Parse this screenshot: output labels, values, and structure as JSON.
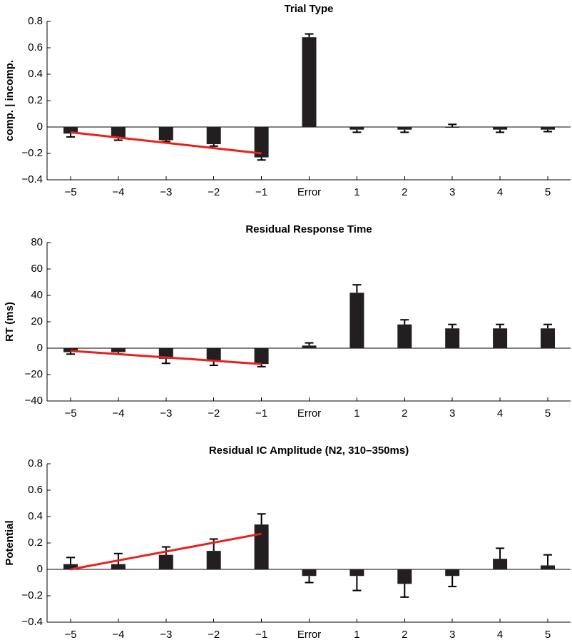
{
  "chart_data": [
    {
      "type": "bar",
      "title": "Trial Type",
      "ylabel": "comp. | incomp.",
      "xlabel": "",
      "categories": [
        "−5",
        "−4",
        "−3",
        "−2",
        "−1",
        "Error",
        "1",
        "2",
        "3",
        "4",
        "5"
      ],
      "values": [
        -0.05,
        -0.08,
        -0.1,
        -0.13,
        -0.23,
        0.68,
        -0.02,
        -0.02,
        0.0,
        -0.02,
        -0.02
      ],
      "errors": [
        0.025,
        0.02,
        0.01,
        0.015,
        0.02,
        0.025,
        0.02,
        0.02,
        0.02,
        0.02,
        0.015
      ],
      "ylim": [
        -0.4,
        0.8
      ],
      "yticks": [
        -0.4,
        -0.2,
        0,
        0.2,
        0.4,
        0.6,
        0.8
      ],
      "ytick_labels": [
        "−0.4",
        "−0.2",
        "0",
        "0.2",
        "0.4",
        "0.6",
        "0.8"
      ],
      "trend_line": {
        "from": {
          "category_index": 0,
          "value": -0.04
        },
        "to": {
          "category_index": 4,
          "value": -0.2
        }
      },
      "colors": {
        "bar": "#231f20",
        "trend": "#e8211f"
      }
    },
    {
      "type": "bar",
      "title": "Residual Response Time",
      "ylabel": "RT (ms)",
      "xlabel": "",
      "categories": [
        "−5",
        "−4",
        "−3",
        "−2",
        "−1",
        "Error",
        "1",
        "2",
        "3",
        "4",
        "5"
      ],
      "values": [
        -3,
        -3,
        -8,
        -10,
        -12,
        2,
        42,
        18,
        15,
        15,
        15
      ],
      "errors": [
        1.5,
        1.5,
        3.5,
        3,
        2,
        2,
        6,
        3.5,
        3,
        3,
        3
      ],
      "ylim": [
        -40,
        80
      ],
      "yticks": [
        -40,
        -20,
        0,
        20,
        40,
        60,
        80
      ],
      "ytick_labels": [
        "−40",
        "−20",
        "0",
        "20",
        "40",
        "60",
        "80"
      ],
      "trend_line": {
        "from": {
          "category_index": 0,
          "value": -2
        },
        "to": {
          "category_index": 4,
          "value": -12
        }
      },
      "colors": {
        "bar": "#231f20",
        "trend": "#e8211f"
      }
    },
    {
      "type": "bar",
      "title": "Residual IC Amplitude (N2, 310–350ms)",
      "ylabel": "Potential",
      "xlabel": "",
      "categories": [
        "−5",
        "−4",
        "−3",
        "−2",
        "−1",
        "Error",
        "1",
        "2",
        "3",
        "4",
        "5"
      ],
      "values": [
        0.04,
        0.04,
        0.11,
        0.14,
        0.34,
        -0.05,
        -0.05,
        -0.11,
        -0.05,
        0.08,
        0.03
      ],
      "errors": [
        0.05,
        0.08,
        0.06,
        0.09,
        0.08,
        0.05,
        0.11,
        0.1,
        0.08,
        0.08,
        0.08
      ],
      "ylim": [
        -0.4,
        0.8
      ],
      "yticks": [
        -0.4,
        -0.2,
        0,
        0.2,
        0.4,
        0.6,
        0.8
      ],
      "ytick_labels": [
        "−0.4",
        "−0.2",
        "0",
        "0.2",
        "0.4",
        "0.6",
        "0.8"
      ],
      "trend_line": {
        "from": {
          "category_index": 0,
          "value": 0.0
        },
        "to": {
          "category_index": 4,
          "value": 0.27
        }
      },
      "colors": {
        "bar": "#231f20",
        "trend": "#e8211f"
      }
    }
  ]
}
